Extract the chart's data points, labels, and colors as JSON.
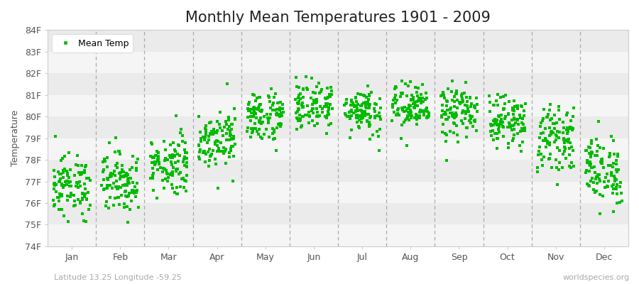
{
  "title": "Monthly Mean Temperatures 1901 - 2009",
  "ylabel": "Temperature",
  "ylim": [
    74,
    84
  ],
  "yticks": [
    74,
    75,
    76,
    77,
    78,
    79,
    80,
    81,
    82,
    83,
    84
  ],
  "ytick_labels": [
    "74F",
    "75F",
    "76F",
    "77F",
    "78F",
    "79F",
    "80F",
    "81F",
    "82F",
    "83F",
    "84F"
  ],
  "months": [
    "Jan",
    "Feb",
    "Mar",
    "Apr",
    "May",
    "Jun",
    "Jul",
    "Aug",
    "Sep",
    "Oct",
    "Nov",
    "Dec"
  ],
  "month_means": [
    76.8,
    77.0,
    77.8,
    79.0,
    80.0,
    80.5,
    80.3,
    80.4,
    80.2,
    79.8,
    79.0,
    77.5
  ],
  "month_stds": [
    0.7,
    0.7,
    0.7,
    0.65,
    0.6,
    0.55,
    0.55,
    0.55,
    0.6,
    0.55,
    0.7,
    0.8
  ],
  "n_years": 109,
  "dot_color": "#00bb00",
  "marker": "s",
  "marker_size": 2.5,
  "legend_label": "Mean Temp",
  "bg_color": "#ffffff",
  "plot_bg_color": "#ffffff",
  "band_color_light": "#f5f5f5",
  "band_color_dark": "#ebebeb",
  "dashed_line_color": "#aaaaaa",
  "caption_left": "Latitude 13.25 Longitude -59.25",
  "caption_right": "worldspecies.org",
  "caption_color": "#aaaaaa",
  "title_fontsize": 15,
  "axis_fontsize": 9,
  "caption_fontsize": 8
}
